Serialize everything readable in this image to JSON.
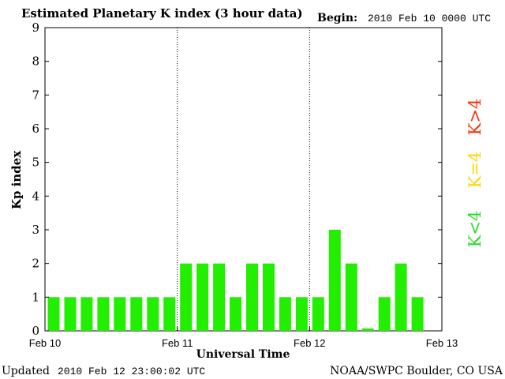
{
  "title": "Estimated Planetary K index (3 hour data)",
  "begin_label": "Begin:",
  "begin_value": "2010 Feb 10 0000 UTC",
  "footer_left_label": "Updated",
  "footer_left_value": "2010 Feb 12 23:00:02 UTC",
  "footer_right": "NOAA/SWPC Boulder, CO USA",
  "legend": [
    {
      "label": "K>4",
      "color": "#ff2a00"
    },
    {
      "label": "K=4",
      "color": "#ffd400"
    },
    {
      "label": "K<4",
      "color": "#22dd22"
    }
  ],
  "chart_data": {
    "type": "bar",
    "title": "Estimated Planetary K index (3 hour data)",
    "ylabel": "Kp index",
    "xlabel": "Universal Time",
    "ylim": [
      0,
      9
    ],
    "y_ticks": [
      "0",
      "1",
      "2",
      "3",
      "4",
      "5",
      "6",
      "7",
      "8",
      "9"
    ],
    "x_ticks": [
      "Feb 10",
      "Feb 11",
      "Feb 12",
      "Feb 13"
    ],
    "day_dividers_after_day": [
      1,
      2
    ],
    "bar_color": "#22ee00",
    "values": [
      1,
      1,
      1,
      1,
      1,
      1,
      1,
      1,
      2,
      2,
      2,
      1,
      2,
      2,
      1,
      1,
      1,
      3,
      2,
      0.07,
      1,
      2,
      1
    ]
  }
}
